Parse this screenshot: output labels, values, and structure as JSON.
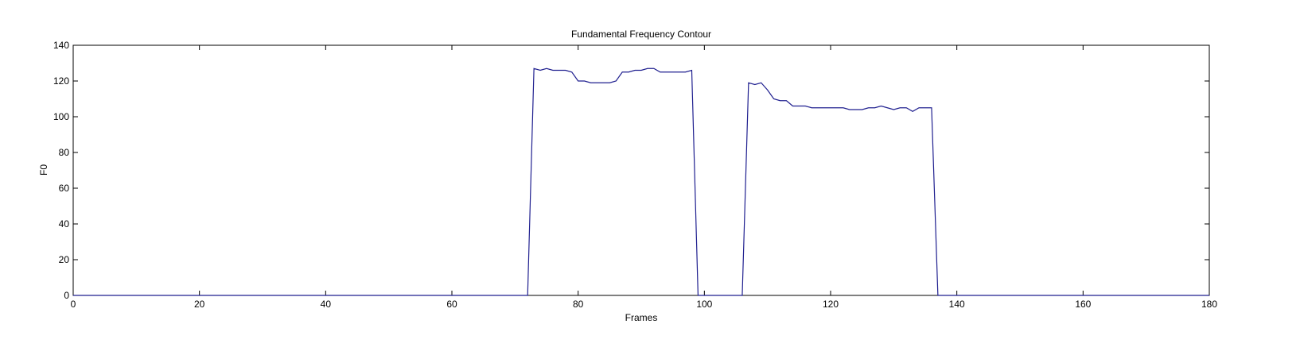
{
  "figure": {
    "title": "Fundamental Frequency Contour",
    "xlabel": "Frames",
    "ylabel": "F0"
  },
  "chart_data": {
    "type": "line",
    "title": "Fundamental Frequency Contour",
    "xlabel": "Frames",
    "ylabel": "F0",
    "xlim": [
      0,
      180
    ],
    "ylim": [
      0,
      140
    ],
    "xticks": [
      0,
      20,
      40,
      60,
      80,
      100,
      120,
      140,
      160,
      180
    ],
    "yticks": [
      0,
      20,
      40,
      60,
      80,
      100,
      120,
      140
    ],
    "grid": false,
    "colors": {
      "line": "#1f1f8f",
      "axes": "#000000",
      "background": "#ffffff"
    },
    "series": [
      {
        "x": [
          0,
          72,
          73,
          74,
          75,
          76,
          77,
          78,
          79,
          80,
          81,
          82,
          83,
          84,
          85,
          86,
          87,
          88,
          89,
          90,
          91,
          92,
          93,
          94,
          95,
          96,
          97,
          98,
          99,
          106,
          107,
          108,
          109,
          110,
          111,
          112,
          113,
          114,
          115,
          116,
          117,
          118,
          119,
          120,
          121,
          122,
          123,
          124,
          125,
          126,
          127,
          128,
          129,
          130,
          131,
          132,
          133,
          134,
          135,
          136,
          137,
          180
        ],
        "y": [
          0,
          0,
          127,
          126,
          127,
          126,
          126,
          126,
          125,
          120,
          120,
          119,
          119,
          119,
          119,
          120,
          125,
          125,
          126,
          126,
          127,
          127,
          125,
          125,
          125,
          125,
          125,
          126,
          0,
          0,
          119,
          118,
          119,
          115,
          110,
          109,
          109,
          106,
          106,
          106,
          105,
          105,
          105,
          105,
          105,
          105,
          104,
          104,
          104,
          105,
          105,
          106,
          105,
          104,
          105,
          105,
          103,
          105,
          105,
          105,
          0,
          0
        ]
      }
    ]
  }
}
